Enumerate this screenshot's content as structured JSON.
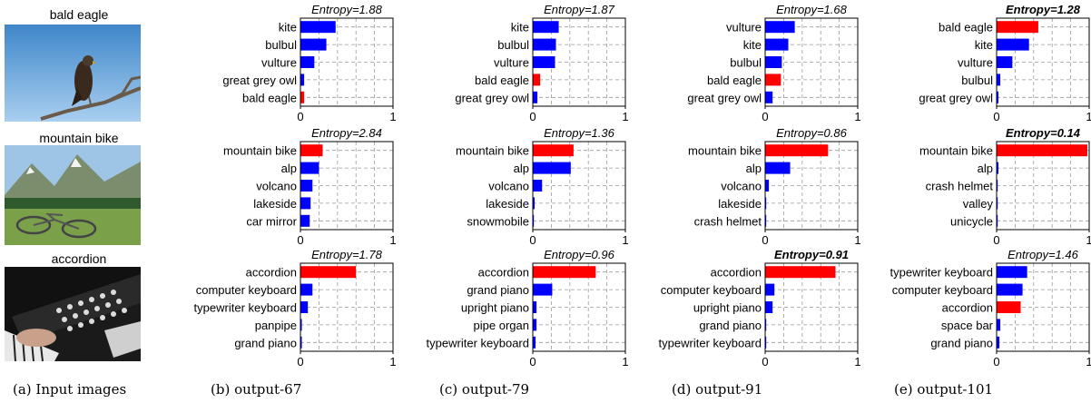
{
  "input_panel": {
    "images": [
      {
        "label": "bald eagle",
        "subject": "bald-eagle-photo"
      },
      {
        "label": "mountain bike",
        "subject": "mountain-bike-photo"
      },
      {
        "label": "accordion",
        "subject": "accordion-photo"
      }
    ],
    "caption": "(a)  Input images"
  },
  "columns": [
    {
      "caption": "(b)  output-67"
    },
    {
      "caption": "(c)  output-79"
    },
    {
      "caption": "(d)  output-91"
    },
    {
      "caption": "(e)  output-101"
    }
  ],
  "colors": {
    "correct": "#ff0000",
    "other": "#0000ff"
  },
  "chart_data": [
    {
      "type": "bar",
      "orientation": "horizontal",
      "column": 0,
      "row": 0,
      "title": "Entropy=1.88",
      "title_bold": false,
      "categories": [
        "kite",
        "bulbul",
        "vulture",
        "great grey owl",
        "bald eagle"
      ],
      "values": [
        0.38,
        0.28,
        0.15,
        0.04,
        0.04
      ],
      "highlight": 4,
      "xlim": [
        0,
        1
      ],
      "xticks": [
        "0",
        "1"
      ]
    },
    {
      "type": "bar",
      "orientation": "horizontal",
      "column": 1,
      "row": 0,
      "title": "Entropy=1.87",
      "title_bold": false,
      "categories": [
        "kite",
        "bulbul",
        "vulture",
        "bald eagle",
        "great grey owl"
      ],
      "values": [
        0.28,
        0.25,
        0.24,
        0.08,
        0.05
      ],
      "highlight": 3,
      "xlim": [
        0,
        1
      ],
      "xticks": [
        "0",
        "1"
      ]
    },
    {
      "type": "bar",
      "orientation": "horizontal",
      "column": 2,
      "row": 0,
      "title": "Entropy=1.68",
      "title_bold": false,
      "categories": [
        "vulture",
        "kite",
        "bulbul",
        "bald eagle",
        "great grey owl"
      ],
      "values": [
        0.32,
        0.25,
        0.18,
        0.17,
        0.08
      ],
      "highlight": 3,
      "xlim": [
        0,
        1
      ],
      "xticks": [
        "0",
        "1"
      ]
    },
    {
      "type": "bar",
      "orientation": "horizontal",
      "column": 3,
      "row": 0,
      "title": "Entropy=1.28",
      "title_bold": true,
      "categories": [
        "bald eagle",
        "kite",
        "vulture",
        "bulbul",
        "great grey owl"
      ],
      "values": [
        0.45,
        0.35,
        0.17,
        0.04,
        0.02
      ],
      "highlight": 0,
      "xlim": [
        0,
        1
      ],
      "xticks": [
        "0",
        "1"
      ]
    },
    {
      "type": "bar",
      "orientation": "horizontal",
      "column": 0,
      "row": 1,
      "title": "Entropy=2.84",
      "title_bold": false,
      "categories": [
        "mountain bike",
        "alp",
        "volcano",
        "lakeside",
        "car mirror"
      ],
      "values": [
        0.24,
        0.2,
        0.13,
        0.11,
        0.1
      ],
      "highlight": 0,
      "xlim": [
        0,
        1
      ],
      "xticks": [
        "0",
        "1"
      ]
    },
    {
      "type": "bar",
      "orientation": "horizontal",
      "column": 1,
      "row": 1,
      "title": "Entropy=1.36",
      "title_bold": false,
      "categories": [
        "mountain bike",
        "alp",
        "volcano",
        "lakeside",
        "snowmobile"
      ],
      "values": [
        0.44,
        0.41,
        0.1,
        0.02,
        0.01
      ],
      "highlight": 0,
      "xlim": [
        0,
        1
      ],
      "xticks": [
        "0",
        "1"
      ]
    },
    {
      "type": "bar",
      "orientation": "horizontal",
      "column": 2,
      "row": 1,
      "title": "Entropy=0.86",
      "title_bold": false,
      "categories": [
        "mountain bike",
        "alp",
        "volcano",
        "lakeside",
        "crash helmet"
      ],
      "values": [
        0.68,
        0.27,
        0.04,
        0.01,
        0.005
      ],
      "highlight": 0,
      "xlim": [
        0,
        1
      ],
      "xticks": [
        "0",
        "1"
      ]
    },
    {
      "type": "bar",
      "orientation": "horizontal",
      "column": 3,
      "row": 1,
      "title": "Entropy=0.14",
      "title_bold": true,
      "categories": [
        "mountain bike",
        "alp",
        "crash helmet",
        "valley",
        "unicycle"
      ],
      "values": [
        0.98,
        0.02,
        0.003,
        0.002,
        0.002
      ],
      "highlight": 0,
      "xlim": [
        0,
        1
      ],
      "xticks": [
        "0",
        "1"
      ]
    },
    {
      "type": "bar",
      "orientation": "horizontal",
      "column": 0,
      "row": 2,
      "title": "Entropy=1.78",
      "title_bold": false,
      "categories": [
        "accordion",
        "computer keyboard",
        "typewriter keyboard",
        "panpipe",
        "grand piano"
      ],
      "values": [
        0.6,
        0.13,
        0.08,
        0.015,
        0.015
      ],
      "highlight": 0,
      "xlim": [
        0,
        1
      ],
      "xticks": [
        "0",
        "1"
      ]
    },
    {
      "type": "bar",
      "orientation": "horizontal",
      "column": 1,
      "row": 2,
      "title": "Entropy=0.96",
      "title_bold": false,
      "categories": [
        "accordion",
        "grand piano",
        "upright piano",
        "pipe organ",
        "typewriter keyboard"
      ],
      "values": [
        0.68,
        0.21,
        0.04,
        0.04,
        0.03
      ],
      "highlight": 0,
      "xlim": [
        0,
        1
      ],
      "xticks": [
        "0",
        "1"
      ]
    },
    {
      "type": "bar",
      "orientation": "horizontal",
      "column": 2,
      "row": 2,
      "title": "Entropy=0.91",
      "title_bold": true,
      "categories": [
        "accordion",
        "computer keyboard",
        "upright piano",
        "grand piano",
        "typewriter keyboard"
      ],
      "values": [
        0.76,
        0.1,
        0.08,
        0.01,
        0.01
      ],
      "highlight": 0,
      "xlim": [
        0,
        1
      ],
      "xticks": [
        "0",
        "1"
      ]
    },
    {
      "type": "bar",
      "orientation": "horizontal",
      "column": 3,
      "row": 2,
      "title": "Entropy=1.46",
      "title_bold": false,
      "categories": [
        "typewriter keyboard",
        "computer keyboard",
        "accordion",
        "space bar",
        "grand piano"
      ],
      "values": [
        0.33,
        0.28,
        0.26,
        0.04,
        0.03
      ],
      "highlight": 2,
      "xlim": [
        0,
        1
      ],
      "xticks": [
        "0",
        "1"
      ]
    }
  ]
}
